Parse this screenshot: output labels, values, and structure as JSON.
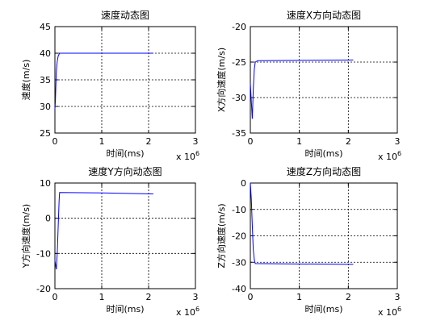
{
  "chart_data": [
    {
      "type": "line",
      "title": "速度动态图",
      "xlabel": "时间(ms)",
      "ylabel": "速度(m/s)",
      "x_multiplier": "x 10",
      "x_multiplier_exp": "6",
      "xlim": [
        0,
        3
      ],
      "ylim": [
        25,
        45
      ],
      "xticks": [
        0,
        1,
        2,
        3
      ],
      "yticks": [
        25,
        30,
        35,
        40,
        45
      ],
      "series": [
        {
          "color": "#0000ff",
          "points": [
            [
              0,
              29.5
            ],
            [
              0.01,
              31
            ],
            [
              0.02,
              34
            ],
            [
              0.03,
              36.5
            ],
            [
              0.05,
              38.5
            ],
            [
              0.07,
              39.5
            ],
            [
              0.1,
              40
            ],
            [
              2.1,
              40
            ]
          ]
        }
      ]
    },
    {
      "type": "line",
      "title": "速度X方向动态图",
      "xlabel": "时间(ms)",
      "ylabel": "X方向速度(m/s)",
      "x_multiplier": "x 10",
      "x_multiplier_exp": "6",
      "xlim": [
        0,
        3
      ],
      "ylim": [
        -35,
        -20
      ],
      "xticks": [
        0,
        1,
        2,
        3
      ],
      "yticks": [
        -35,
        -30,
        -25,
        -20
      ],
      "series": [
        {
          "color": "#0000ff",
          "points": [
            [
              0,
              -28
            ],
            [
              0.02,
              -30.5
            ],
            [
              0.04,
              -33
            ],
            [
              0.06,
              -29
            ],
            [
              0.08,
              -26
            ],
            [
              0.1,
              -25
            ],
            [
              0.15,
              -24.8
            ],
            [
              2.1,
              -24.7
            ]
          ]
        }
      ]
    },
    {
      "type": "line",
      "title": "速度Y方向动态图",
      "xlabel": "时间(ms)",
      "ylabel": "Y方向速度(m/s)",
      "x_multiplier": "x 10",
      "x_multiplier_exp": "6",
      "xlim": [
        0,
        3
      ],
      "ylim": [
        -20,
        10
      ],
      "xticks": [
        0,
        1,
        2,
        3
      ],
      "yticks": [
        -20,
        -10,
        0,
        10
      ],
      "series": [
        {
          "color": "#0000ff",
          "points": [
            [
              0,
              -12
            ],
            [
              0.03,
              -14.5
            ],
            [
              0.05,
              -10
            ],
            [
              0.07,
              -2
            ],
            [
              0.09,
              5
            ],
            [
              0.1,
              7.3
            ],
            [
              1.0,
              7.2
            ],
            [
              2.1,
              6.9
            ]
          ]
        }
      ]
    },
    {
      "type": "line",
      "title": "速度Z方向动态图",
      "xlabel": "时间(ms)",
      "ylabel": "Z方向速度(m/s)",
      "x_multiplier": "x 10",
      "x_multiplier_exp": "6",
      "xlim": [
        0,
        3
      ],
      "ylim": [
        -40,
        0
      ],
      "xticks": [
        0,
        1,
        2,
        3
      ],
      "yticks": [
        -40,
        -30,
        -20,
        -10,
        0
      ],
      "series": [
        {
          "color": "#0000ff",
          "points": [
            [
              0,
              0
            ],
            [
              0.02,
              -6
            ],
            [
              0.04,
              -16
            ],
            [
              0.06,
              -25
            ],
            [
              0.08,
              -29
            ],
            [
              0.1,
              -30.5
            ],
            [
              2.1,
              -30.8
            ]
          ]
        }
      ]
    }
  ]
}
